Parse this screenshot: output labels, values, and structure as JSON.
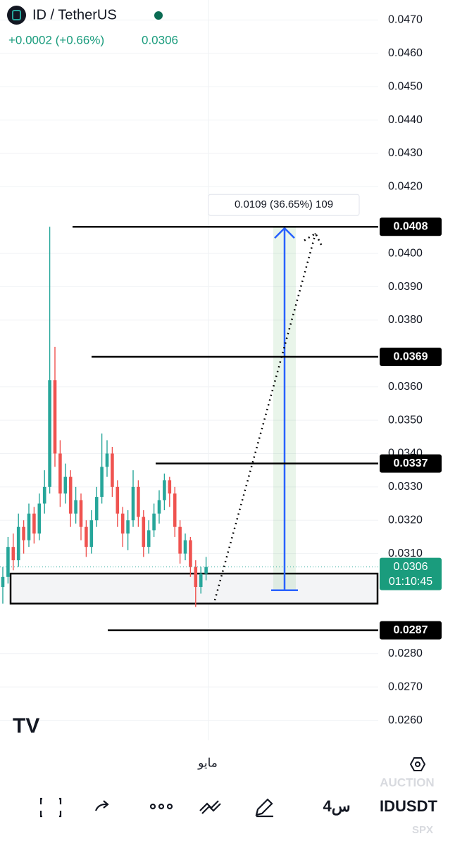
{
  "header": {
    "symbol": "ID / TetherUS",
    "change": "+0.0002 (+0.66%)",
    "price": "0.0306"
  },
  "chart_data": {
    "type": "candlestick",
    "open": [
      0.03,
      0.0303,
      0.0312,
      0.0308,
      0.0318,
      0.0314,
      0.0322,
      0.0316,
      0.0325,
      0.033,
      0.0362,
      0.034,
      0.0328,
      0.0333,
      0.0322,
      0.0326,
      0.0318,
      0.0312,
      0.032,
      0.0327,
      0.0336,
      0.034,
      0.033,
      0.0322,
      0.0316,
      0.032,
      0.033,
      0.0321,
      0.0312,
      0.0317,
      0.0322,
      0.0326,
      0.0332,
      0.0328,
      0.0318,
      0.031,
      0.0314,
      0.0306,
      0.03,
      0.0304
    ],
    "high": [
      0.0306,
      0.0315,
      0.0316,
      0.0322,
      0.032,
      0.0325,
      0.0324,
      0.0328,
      0.0335,
      0.0408,
      0.0372,
      0.0344,
      0.0337,
      0.0335,
      0.033,
      0.0328,
      0.032,
      0.0323,
      0.033,
      0.0346,
      0.0344,
      0.0342,
      0.0332,
      0.0324,
      0.0323,
      0.0335,
      0.0332,
      0.0323,
      0.032,
      0.0325,
      0.0329,
      0.0334,
      0.0333,
      0.033,
      0.032,
      0.0316,
      0.0315,
      0.0308,
      0.0306,
      0.0309
    ],
    "low": [
      0.0295,
      0.0301,
      0.0305,
      0.0306,
      0.031,
      0.0312,
      0.0313,
      0.0314,
      0.0322,
      0.0328,
      0.0336,
      0.0324,
      0.0325,
      0.0318,
      0.0319,
      0.0314,
      0.0309,
      0.031,
      0.0318,
      0.0325,
      0.0333,
      0.0327,
      0.0318,
      0.0312,
      0.0311,
      0.0318,
      0.0318,
      0.0309,
      0.031,
      0.0315,
      0.0319,
      0.0323,
      0.0324,
      0.0315,
      0.0307,
      0.0308,
      0.0303,
      0.0294,
      0.0298,
      0.0302
    ],
    "close": [
      0.0303,
      0.0312,
      0.0308,
      0.0318,
      0.0314,
      0.0322,
      0.0316,
      0.0325,
      0.033,
      0.0362,
      0.034,
      0.0328,
      0.0333,
      0.0322,
      0.0326,
      0.0318,
      0.0312,
      0.032,
      0.0327,
      0.0336,
      0.034,
      0.033,
      0.0322,
      0.0316,
      0.032,
      0.033,
      0.0321,
      0.0312,
      0.0317,
      0.0322,
      0.0326,
      0.0332,
      0.0328,
      0.0318,
      0.031,
      0.0314,
      0.0306,
      0.03,
      0.0304,
      0.0306
    ],
    "up_color": "#26a69a",
    "down_color": "#ef5350",
    "ylim": [
      0.0254,
      0.0476
    ],
    "yticks": [
      {
        "value": 0.047,
        "label": "0.0470"
      },
      {
        "value": 0.046,
        "label": "0.0460"
      },
      {
        "value": 0.045,
        "label": "0.0450"
      },
      {
        "value": 0.044,
        "label": "0.0440"
      },
      {
        "value": 0.043,
        "label": "0.0430"
      },
      {
        "value": 0.042,
        "label": "0.0420"
      },
      {
        "value": 0.04,
        "label": "0.0400"
      },
      {
        "value": 0.039,
        "label": "0.0390"
      },
      {
        "value": 0.038,
        "label": "0.0380"
      },
      {
        "value": 0.036,
        "label": "0.0360"
      },
      {
        "value": 0.035,
        "label": "0.0350"
      },
      {
        "value": 0.034,
        "label": "0.0340"
      },
      {
        "value": 0.033,
        "label": "0.0330"
      },
      {
        "value": 0.032,
        "label": "0.0320"
      },
      {
        "value": 0.031,
        "label": "0.0310"
      },
      {
        "value": 0.028,
        "label": "0.0280"
      },
      {
        "value": 0.027,
        "label": "0.0270"
      },
      {
        "value": 0.026,
        "label": "0.0260"
      }
    ],
    "grid": true,
    "levels": [
      0.0408,
      0.0369,
      0.0337,
      0.0287
    ],
    "last_price": 0.0306,
    "countdown": "01:10:45",
    "zone": [
      0.0295,
      0.0304
    ],
    "measure": {
      "from": 0.0408,
      "to": 0.0299,
      "label": "0.0109 (36.65%) 109"
    },
    "projection": {
      "from": 0.0296,
      "to": 0.0406
    },
    "month_label": "مايو"
  },
  "toolbar": {
    "interval": "4س",
    "symbol": "IDUSDT",
    "exchange_hint": "AUCTION",
    "index_hint": "SPX"
  }
}
